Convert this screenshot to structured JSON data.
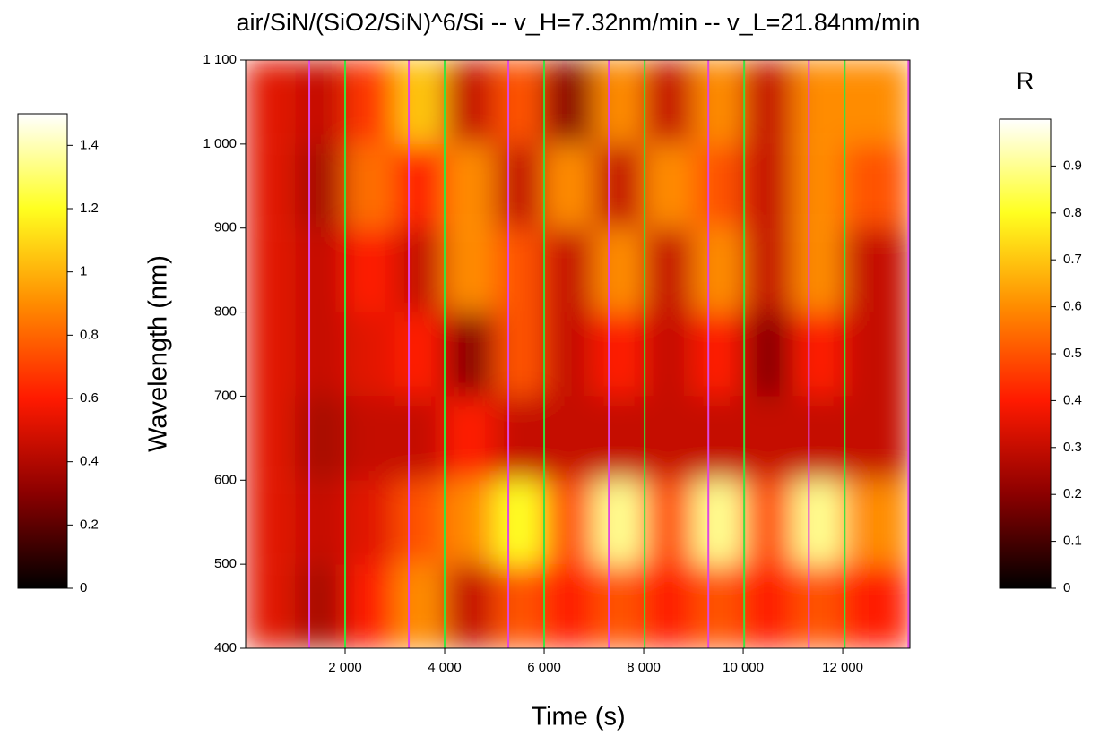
{
  "chart_data": {
    "type": "heatmap",
    "title": "air/SiN/(SiO2/SiN)^6/Si -- v_H=7.32nm/min -- v_L=21.84nm/min",
    "x_label": "Time (s)",
    "y_label": "Wavelength (nm)",
    "xlim": [
      0,
      13350
    ],
    "ylim": [
      400,
      1100
    ],
    "xticks": [
      {
        "value": 2000,
        "label": "2 000"
      },
      {
        "value": 4000,
        "label": "4 000"
      },
      {
        "value": 6000,
        "label": "6 000"
      },
      {
        "value": 8000,
        "label": "8 000"
      },
      {
        "value": 10000,
        "label": "10 000"
      },
      {
        "value": 12000,
        "label": "12 000"
      }
    ],
    "yticks": [
      400,
      500,
      600,
      700,
      800,
      900,
      {
        "value": 1000,
        "label": "1 000"
      },
      {
        "value": 1100,
        "label": "1 100"
      }
    ],
    "colormap": [
      "#000000",
      "#8b0000",
      "#ff1a00",
      "#ff8c00",
      "#ffff20",
      "#ffffff"
    ],
    "x": [
      500,
      1500,
      2500,
      3500,
      4500,
      5500,
      6500,
      7500,
      8500,
      9500,
      10500,
      11500,
      12500
    ],
    "y": [
      450,
      550,
      650,
      750,
      850,
      950,
      1050
    ],
    "z": [
      [
        0.35,
        0.25,
        0.4,
        0.6,
        0.3,
        0.5,
        0.4,
        0.5,
        0.4,
        0.5,
        0.4,
        0.5,
        0.4
      ],
      [
        0.35,
        0.3,
        0.35,
        0.5,
        0.6,
        0.8,
        0.5,
        0.9,
        0.5,
        0.9,
        0.5,
        0.9,
        0.6
      ],
      [
        0.35,
        0.25,
        0.3,
        0.3,
        0.4,
        0.3,
        0.3,
        0.3,
        0.3,
        0.3,
        0.3,
        0.3,
        0.3
      ],
      [
        0.35,
        0.3,
        0.35,
        0.4,
        0.2,
        0.5,
        0.3,
        0.4,
        0.3,
        0.4,
        0.2,
        0.4,
        0.3
      ],
      [
        0.35,
        0.3,
        0.4,
        0.3,
        0.6,
        0.5,
        0.3,
        0.6,
        0.3,
        0.6,
        0.3,
        0.6,
        0.3
      ],
      [
        0.35,
        0.25,
        0.55,
        0.4,
        0.6,
        0.3,
        0.6,
        0.3,
        0.6,
        0.5,
        0.3,
        0.6,
        0.5
      ],
      [
        0.35,
        0.3,
        0.45,
        0.7,
        0.3,
        0.5,
        0.2,
        0.6,
        0.3,
        0.6,
        0.3,
        0.6,
        0.6
      ]
    ],
    "vlines": [
      {
        "color": "#e048e0",
        "x": [
          1280,
          3280,
          5280,
          7300,
          9300,
          11320,
          13320
        ]
      },
      {
        "color": "#3ee03e",
        "x": [
          2000,
          4000,
          6000,
          8020,
          10020,
          12040
        ]
      }
    ],
    "colorbars": [
      {
        "ylim": [
          0,
          1.5
        ],
        "yticks": [
          0,
          0.2,
          0.4,
          0.6,
          0.8,
          1,
          1.2,
          1.4
        ]
      },
      {
        "label": "R",
        "ylim": [
          0,
          1
        ],
        "yticks": [
          0,
          0.1,
          0.2,
          0.3,
          0.4,
          0.5,
          0.6,
          0.7,
          0.8,
          0.9
        ]
      }
    ]
  }
}
